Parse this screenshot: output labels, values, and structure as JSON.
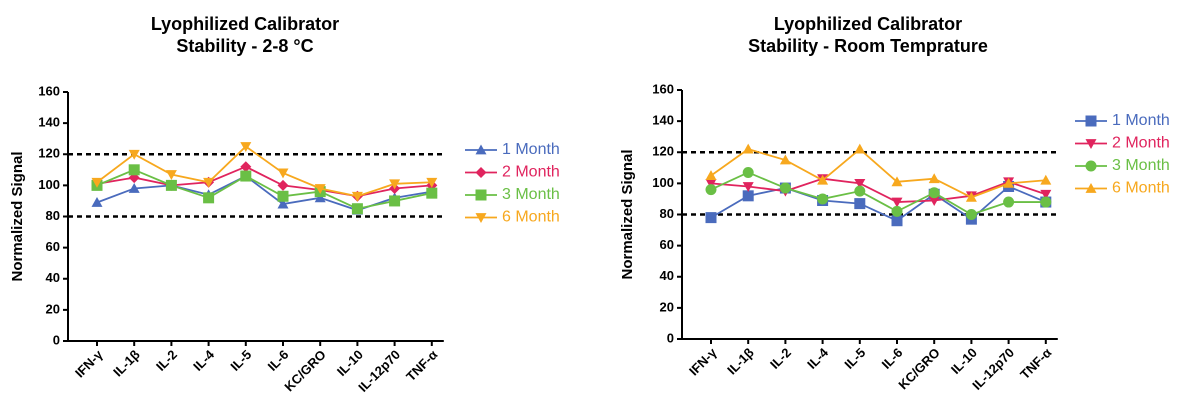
{
  "chart_data": [
    {
      "type": "line",
      "title": [
        "Lyophilized Calibrator",
        "Stability - 2-8 °C"
      ],
      "y_label": "Normalized Signal",
      "categories": [
        "IFN-γ",
        "IL-1β",
        "IL-2",
        "IL-4",
        "IL-5",
        "IL-6",
        "KC/GRO",
        "IL-10",
        "IL-12p70",
        "TNF-α"
      ],
      "ylim": [
        0,
        160
      ],
      "yticks": [
        0,
        20,
        40,
        60,
        80,
        100,
        120,
        140,
        160
      ],
      "reference_lines": [
        80,
        120
      ],
      "legend": "right",
      "series": [
        {
          "name": "1 Month",
          "color": "#4a6bbd",
          "marker": "triangle-up",
          "values": [
            89,
            98,
            100,
            94,
            106,
            88,
            92,
            84,
            92,
            96
          ]
        },
        {
          "name": "2 Month",
          "color": "#e0245e",
          "marker": "diamond",
          "values": [
            101,
            105,
            100,
            102,
            112,
            100,
            97,
            93,
            98,
            100
          ]
        },
        {
          "name": "3 Month",
          "color": "#6abf45",
          "marker": "square",
          "values": [
            100,
            110,
            100,
            92,
            106,
            93,
            96,
            85,
            90,
            95
          ]
        },
        {
          "name": "6 Month",
          "color": "#f7a81e",
          "marker": "triangle-down",
          "values": [
            102,
            120,
            107,
            102,
            125,
            108,
            98,
            93,
            101,
            102
          ]
        }
      ]
    },
    {
      "type": "line",
      "title": [
        "Lyophilized Calibrator",
        "Stability - Room Temprature"
      ],
      "y_label": "Normalized Signal",
      "categories": [
        "IFN-γ",
        "IL-1β",
        "IL-2",
        "IL-4",
        "IL-5",
        "IL-6",
        "KC/GRO",
        "IL-10",
        "IL-12p70",
        "TNF-α"
      ],
      "ylim": [
        0,
        160
      ],
      "yticks": [
        0,
        20,
        40,
        60,
        80,
        100,
        120,
        140,
        160
      ],
      "reference_lines": [
        80,
        120
      ],
      "legend": "right",
      "series": [
        {
          "name": "1 Month",
          "color": "#4a6bbd",
          "marker": "square",
          "values": [
            78,
            92,
            97,
            89,
            87,
            76,
            93,
            77,
            98,
            88
          ]
        },
        {
          "name": "2 Month",
          "color": "#e0245e",
          "marker": "triangle-down",
          "values": [
            100,
            98,
            95,
            103,
            100,
            88,
            89,
            92,
            101,
            93
          ]
        },
        {
          "name": "3 Month",
          "color": "#6abf45",
          "marker": "circle",
          "values": [
            96,
            107,
            97,
            90,
            95,
            82,
            94,
            80,
            88,
            88
          ]
        },
        {
          "name": "6 Month",
          "color": "#f7a81e",
          "marker": "triangle-up",
          "values": [
            105,
            122,
            115,
            102,
            122,
            101,
            103,
            91,
            100,
            102
          ]
        }
      ]
    }
  ]
}
